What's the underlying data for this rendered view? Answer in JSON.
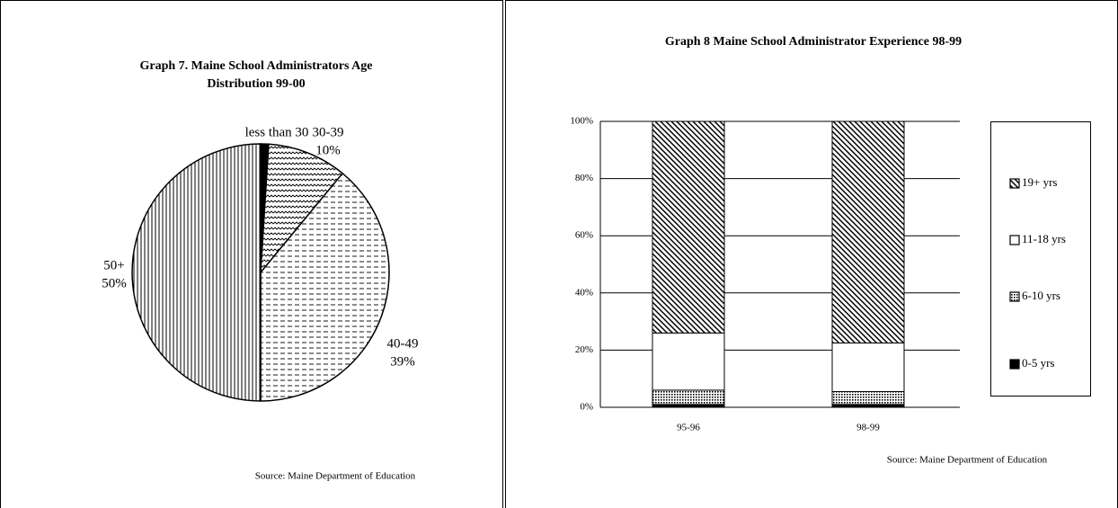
{
  "chart_data": [
    {
      "type": "pie",
      "title": "Graph 7. Maine School Administrators Age Distribution 99-00",
      "categories": [
        "less than 30",
        "30-39",
        "40-49",
        "50+"
      ],
      "values": [
        1,
        10,
        39,
        50
      ],
      "value_labels": [
        "1%",
        "10%",
        "39%",
        "50%"
      ],
      "patterns": [
        "solid",
        "wavy",
        "dashed",
        "vertical"
      ],
      "source": "Source: Maine Department of Education"
    },
    {
      "type": "stacked_bar",
      "title": "Graph 8 Maine School Administrator Experience 98-99",
      "categories": [
        "95-96",
        "98-99"
      ],
      "series": [
        {
          "name": "0-5 yrs",
          "color": "#000000",
          "pattern": "solid",
          "values": [
            1,
            1
          ]
        },
        {
          "name": "6-10 yrs",
          "color": "#000000",
          "pattern": "dots",
          "values": [
            5,
            4.5
          ]
        },
        {
          "name": "11-18 yrs",
          "color": "#ffffff",
          "pattern": "solid",
          "values": [
            20,
            17
          ]
        },
        {
          "name": "19+ yrs",
          "color": "#000000",
          "pattern": "diagonal",
          "values": [
            74,
            77.5
          ]
        }
      ],
      "ylim": [
        0,
        100
      ],
      "yticks": [
        {
          "value": 0,
          "label": "0%"
        },
        {
          "value": 20,
          "label": "20%"
        },
        {
          "value": 40,
          "label": "40%"
        },
        {
          "value": 60,
          "label": "60%"
        },
        {
          "value": 80,
          "label": "80%"
        },
        {
          "value": 100,
          "label": "100%"
        }
      ],
      "grid": true,
      "legend": "right",
      "source": "Source: Maine Department of Education"
    }
  ]
}
